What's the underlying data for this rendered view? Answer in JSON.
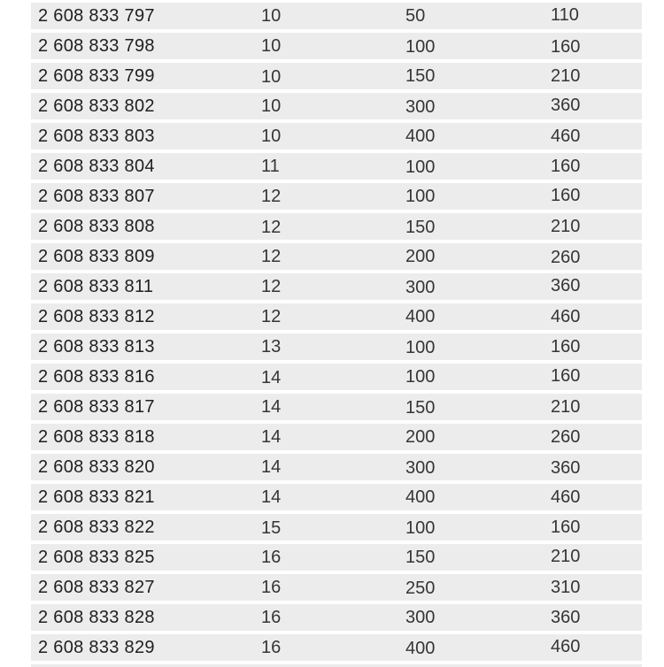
{
  "page": {
    "background_color": "#ffffff",
    "row_background_color": "#ececec",
    "part_number_text_color": "#1f1f1f",
    "value_text_color": "#353535"
  },
  "table": {
    "visible_headers": [],
    "rows": [
      [
        "2 608 833 797",
        "10",
        "50",
        "110"
      ],
      [
        "2 608 833 798",
        "10",
        "100",
        "160"
      ],
      [
        "2 608 833 799",
        "10",
        "150",
        "210"
      ],
      [
        "2 608 833 802",
        "10",
        "300",
        "360"
      ],
      [
        "2 608 833 803",
        "10",
        "400",
        "460"
      ],
      [
        "2 608 833 804",
        "11",
        "100",
        "160"
      ],
      [
        "2 608 833 807",
        "12",
        "100",
        "160"
      ],
      [
        "2 608 833 808",
        "12",
        "150",
        "210"
      ],
      [
        "2 608 833 809",
        "12",
        "200",
        "260"
      ],
      [
        "2 608 833 811",
        "12",
        "300",
        "360"
      ],
      [
        "2 608 833 812",
        "12",
        "400",
        "460"
      ],
      [
        "2 608 833 813",
        "13",
        "100",
        "160"
      ],
      [
        "2 608 833 816",
        "14",
        "100",
        "160"
      ],
      [
        "2 608 833 817",
        "14",
        "150",
        "210"
      ],
      [
        "2 608 833 818",
        "14",
        "200",
        "260"
      ],
      [
        "2 608 833 820",
        "14",
        "300",
        "360"
      ],
      [
        "2 608 833 821",
        "14",
        "400",
        "460"
      ],
      [
        "2 608 833 822",
        "15",
        "100",
        "160"
      ],
      [
        "2 608 833 825",
        "16",
        "150",
        "210"
      ],
      [
        "2 608 833 827",
        "16",
        "250",
        "310"
      ],
      [
        "2 608 833 828",
        "16",
        "300",
        "360"
      ],
      [
        "2 608 833 829",
        "16",
        "400",
        "460"
      ]
    ]
  }
}
